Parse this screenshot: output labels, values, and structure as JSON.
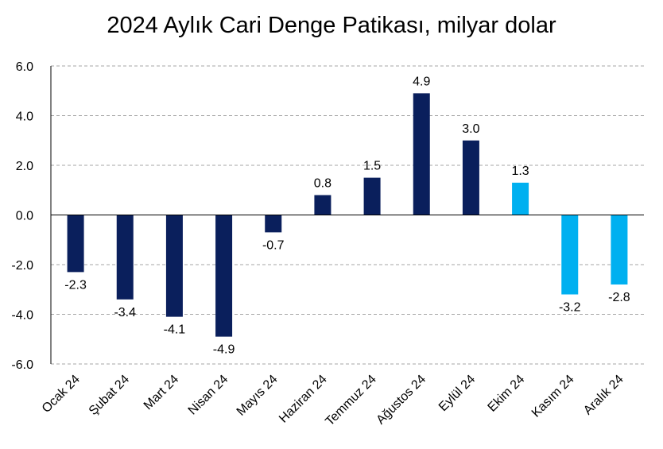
{
  "chart_data": {
    "type": "bar",
    "title": "2024 Aylık Cari Denge Patikası, milyar dolar",
    "categories": [
      "Ocak 24",
      "Şubat 24",
      "Mart 24",
      "Nisan 24",
      "Mayıs 24",
      "Haziran 24",
      "Temmuz 24",
      "Ağustos 24",
      "Eylül 24",
      "Ekim 24",
      "Kasım 24",
      "Aralık 24"
    ],
    "values": [
      -2.3,
      -3.4,
      -4.1,
      -4.9,
      -0.7,
      0.8,
      1.5,
      4.9,
      3.0,
      1.3,
      -3.2,
      -2.8
    ],
    "data_labels": [
      "-2.3",
      "-3.4",
      "-4.1",
      "-4.9",
      "-0.7",
      "0.8",
      "1.5",
      "4.9",
      "3.0",
      "1.3",
      "-3.2",
      "-2.8"
    ],
    "bar_colors": [
      "#0a1f5c",
      "#0a1f5c",
      "#0a1f5c",
      "#0a1f5c",
      "#0a1f5c",
      "#0a1f5c",
      "#0a1f5c",
      "#0a1f5c",
      "#0a1f5c",
      "#00b0f0",
      "#00b0f0",
      "#00b0f0"
    ],
    "ylim": [
      -6,
      6
    ],
    "yticks": [
      -6,
      -4,
      -2,
      0,
      2,
      4,
      6
    ],
    "ytick_labels": [
      "-6.0",
      "-4.0",
      "-2.0",
      "0.0",
      "2.0",
      "4.0",
      "6.0"
    ],
    "grid": true,
    "grid_color": "#a6a6a6",
    "xlabel": "",
    "ylabel": ""
  }
}
